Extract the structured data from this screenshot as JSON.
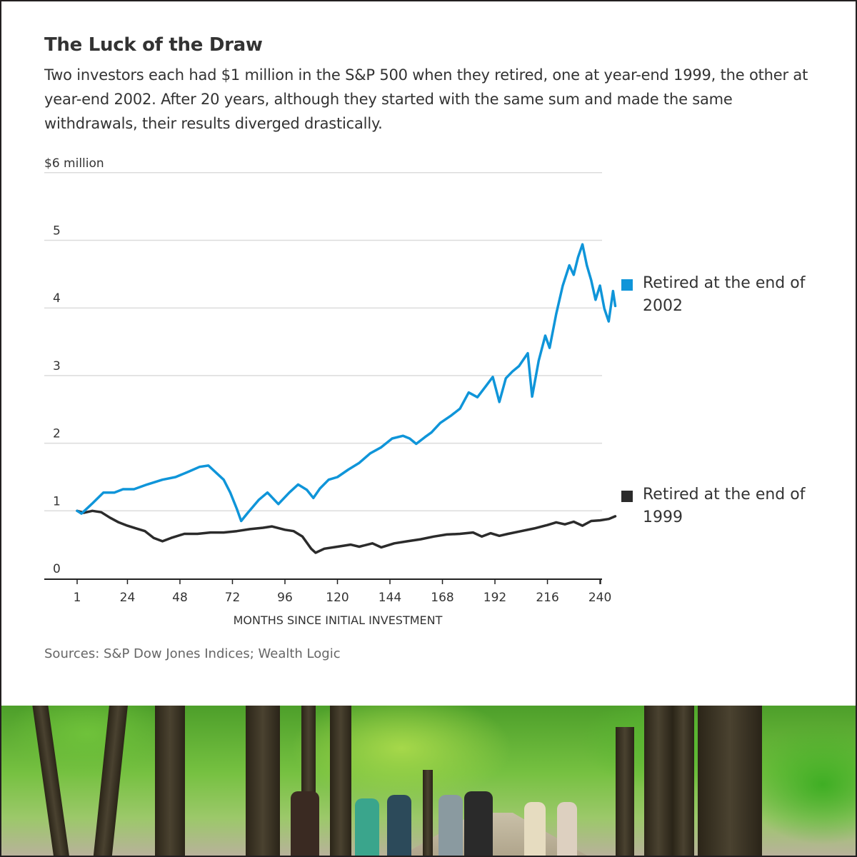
{
  "header": {
    "title": "The Luck of the Draw",
    "subtitle": "Two investors each had $1 million in the S&P 500 when they retired, one at year-end 1999, the other at year-end 2002. After 20 years, although they started with the same sum and made the same withdrawals, their results diverged drastically."
  },
  "footer": {
    "source": "Sources: S&P Dow Jones Indices; Wealth Logic"
  },
  "photo": {
    "description": "tree-lined park path with pedestrians and cyclists"
  },
  "chart_data": {
    "type": "line",
    "title": "The Luck of the Draw",
    "xlabel": "MONTHS SINCE INITIAL INVESTMENT",
    "ylabel": "",
    "ylim": [
      0,
      6
    ],
    "xlim": [
      1,
      248
    ],
    "grid": true,
    "y_ticks": [
      {
        "value": 6,
        "label": "$6 million"
      },
      {
        "value": 5,
        "label": "5"
      },
      {
        "value": 4,
        "label": "4"
      },
      {
        "value": 3,
        "label": "3"
      },
      {
        "value": 2,
        "label": "2"
      },
      {
        "value": 1,
        "label": "1"
      },
      {
        "value": 0,
        "label": "0"
      }
    ],
    "x_ticks": [
      {
        "value": 1,
        "label": "1"
      },
      {
        "value": 24,
        "label": "24"
      },
      {
        "value": 48,
        "label": "48"
      },
      {
        "value": 72,
        "label": "72"
      },
      {
        "value": 96,
        "label": "96"
      },
      {
        "value": 120,
        "label": "120"
      },
      {
        "value": 144,
        "label": "144"
      },
      {
        "value": 168,
        "label": "168"
      },
      {
        "value": 192,
        "label": "192"
      },
      {
        "value": 216,
        "label": "216"
      },
      {
        "value": 240,
        "label": "240"
      }
    ],
    "legend_placement": "right",
    "series": [
      {
        "name": "Retired at the end of 2002",
        "legend_line1": "Retired at the end of",
        "legend_line2": "2002",
        "color": "#0f95d9",
        "x": [
          1,
          3,
          8,
          13,
          18,
          22,
          27,
          33,
          40,
          46,
          52,
          57,
          61,
          65,
          68,
          71,
          74,
          76,
          79,
          84,
          88,
          93,
          98,
          102,
          106,
          109,
          112,
          116,
          120,
          125,
          130,
          135,
          140,
          145,
          150,
          153,
          156,
          160,
          163,
          167,
          172,
          176,
          180,
          184,
          188,
          191,
          194,
          197,
          200,
          203,
          207,
          209,
          212,
          215,
          217,
          220,
          223,
          226,
          228,
          230,
          232,
          234,
          236,
          238,
          240,
          242,
          244,
          246,
          247
        ],
        "values": [
          1.0,
          0.96,
          1.11,
          1.27,
          1.27,
          1.32,
          1.32,
          1.39,
          1.46,
          1.5,
          1.58,
          1.65,
          1.67,
          1.55,
          1.46,
          1.27,
          1.03,
          0.85,
          0.97,
          1.16,
          1.27,
          1.1,
          1.27,
          1.39,
          1.31,
          1.19,
          1.33,
          1.46,
          1.5,
          1.61,
          1.71,
          1.85,
          1.94,
          2.07,
          2.11,
          2.07,
          1.99,
          2.09,
          2.16,
          2.3,
          2.41,
          2.51,
          2.75,
          2.68,
          2.85,
          2.98,
          2.61,
          2.96,
          3.06,
          3.14,
          3.33,
          2.69,
          3.22,
          3.59,
          3.41,
          3.91,
          4.33,
          4.63,
          4.49,
          4.75,
          4.94,
          4.63,
          4.41,
          4.12,
          4.33,
          3.99,
          3.8,
          4.25,
          4.03
        ]
      },
      {
        "name": "Retired at the end of 1999",
        "legend_line1": "Retired at the end of",
        "legend_line2": "1999",
        "color": "#2b2b2b",
        "x": [
          1,
          4,
          8,
          12,
          16,
          20,
          24,
          28,
          32,
          36,
          40,
          44,
          50,
          56,
          62,
          68,
          74,
          80,
          86,
          90,
          96,
          100,
          104,
          108,
          110,
          114,
          120,
          126,
          130,
          136,
          140,
          146,
          152,
          158,
          164,
          170,
          176,
          182,
          186,
          190,
          194,
          198,
          204,
          210,
          216,
          220,
          224,
          228,
          232,
          236,
          240,
          244,
          247
        ],
        "values": [
          1.0,
          0.97,
          1.0,
          0.98,
          0.9,
          0.83,
          0.78,
          0.74,
          0.7,
          0.6,
          0.55,
          0.6,
          0.66,
          0.66,
          0.68,
          0.68,
          0.7,
          0.73,
          0.75,
          0.77,
          0.72,
          0.7,
          0.62,
          0.44,
          0.38,
          0.44,
          0.47,
          0.5,
          0.47,
          0.52,
          0.46,
          0.52,
          0.55,
          0.58,
          0.62,
          0.65,
          0.66,
          0.68,
          0.62,
          0.67,
          0.63,
          0.66,
          0.7,
          0.74,
          0.79,
          0.83,
          0.8,
          0.84,
          0.78,
          0.85,
          0.86,
          0.88,
          0.92
        ]
      }
    ]
  }
}
